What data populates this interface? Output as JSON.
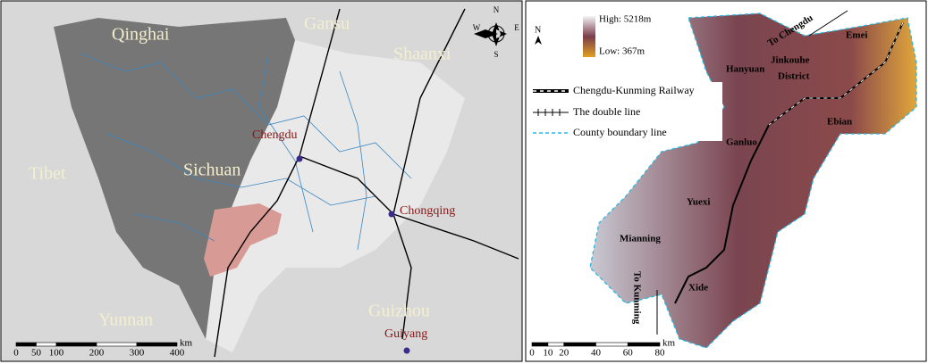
{
  "left_map": {
    "provinces": [
      "Qinghai",
      "Gansu",
      "Shaanxi",
      "Tibet",
      "Sichuan",
      "Yunnan",
      "Guizhou"
    ],
    "cities": [
      "Chengdu",
      "Chongqing",
      "Guiyang"
    ],
    "compass": [
      "N",
      "W",
      "E",
      "S"
    ],
    "scale": {
      "ticks": [
        0,
        50,
        100,
        200,
        300,
        400
      ],
      "unit": "km"
    }
  },
  "right_map": {
    "north": "N",
    "elevation": {
      "high": "High: 5218m",
      "low": "Low: 367m"
    },
    "legend": [
      "Chengdu-Kunming Railway",
      "The double line",
      "County boundary line"
    ],
    "places": [
      "Emei",
      "Hanyuan",
      "Jinkouhe",
      "District",
      "Ebian",
      "Ganluo",
      "Yuexi",
      "Mianning",
      "Xide"
    ],
    "directions": [
      "To Chengdu",
      "To Kunming"
    ],
    "scale": {
      "ticks": [
        0,
        10,
        20,
        40,
        60,
        80
      ],
      "unit": "km"
    }
  }
}
